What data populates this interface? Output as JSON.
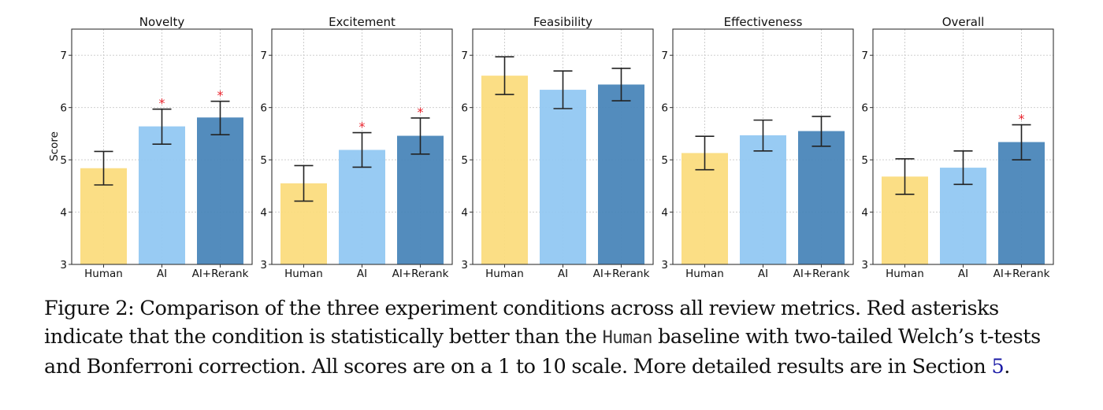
{
  "chart_data": [
    {
      "type": "bar",
      "title": "Novelty",
      "ylabel": "Score",
      "xlabel": "",
      "ylim": [
        3,
        7.5
      ],
      "yticks": [
        3,
        4,
        5,
        6,
        7
      ],
      "grid": true,
      "categories": [
        "Human",
        "AI",
        "AI+Rerank"
      ],
      "values": [
        4.84,
        5.64,
        5.81
      ],
      "error_low": [
        4.52,
        5.3,
        5.48
      ],
      "error_high": [
        5.16,
        5.97,
        6.12
      ],
      "significant": [
        false,
        true,
        true
      ]
    },
    {
      "type": "bar",
      "title": "Excitement",
      "ylabel": "",
      "xlabel": "",
      "ylim": [
        3,
        7.5
      ],
      "yticks": [
        3,
        4,
        5,
        6,
        7
      ],
      "grid": true,
      "categories": [
        "Human",
        "AI",
        "AI+Rerank"
      ],
      "values": [
        4.55,
        5.19,
        5.46
      ],
      "error_low": [
        4.21,
        4.86,
        5.11
      ],
      "error_high": [
        4.89,
        5.52,
        5.8
      ],
      "significant": [
        false,
        true,
        true
      ]
    },
    {
      "type": "bar",
      "title": "Feasibility",
      "ylabel": "",
      "xlabel": "",
      "ylim": [
        3,
        7.5
      ],
      "yticks": [
        3,
        4,
        5,
        6,
        7
      ],
      "grid": true,
      "categories": [
        "Human",
        "AI",
        "AI+Rerank"
      ],
      "values": [
        6.61,
        6.34,
        6.44
      ],
      "error_low": [
        6.25,
        5.98,
        6.13
      ],
      "error_high": [
        6.97,
        6.7,
        6.75
      ],
      "significant": [
        false,
        false,
        false
      ]
    },
    {
      "type": "bar",
      "title": "Effectiveness",
      "ylabel": "",
      "xlabel": "",
      "ylim": [
        3,
        7.5
      ],
      "yticks": [
        3,
        4,
        5,
        6,
        7
      ],
      "grid": true,
      "categories": [
        "Human",
        "AI",
        "AI+Rerank"
      ],
      "values": [
        5.13,
        5.47,
        5.55
      ],
      "error_low": [
        4.81,
        5.17,
        5.26
      ],
      "error_high": [
        5.45,
        5.76,
        5.83
      ],
      "significant": [
        false,
        false,
        false
      ]
    },
    {
      "type": "bar",
      "title": "Overall",
      "ylabel": "",
      "xlabel": "",
      "ylim": [
        3,
        7.5
      ],
      "yticks": [
        3,
        4,
        5,
        6,
        7
      ],
      "grid": true,
      "categories": [
        "Human",
        "AI",
        "AI+Rerank"
      ],
      "values": [
        4.68,
        4.85,
        5.34
      ],
      "error_low": [
        4.34,
        4.53,
        5.0
      ],
      "error_high": [
        5.02,
        5.17,
        5.67
      ],
      "significant": [
        false,
        false,
        true
      ]
    }
  ],
  "colors": {
    "Human": "#FBDC7E",
    "AI": "#92C8F2",
    "AI+Rerank": "#4A86B9",
    "significance_marker": "#E8202A",
    "error_bar": "#222222",
    "link": "#1a1aa6"
  },
  "significance_marker": "*",
  "caption": {
    "line1": "Figure 2: Comparison of the three experiment conditions across all review metrics. Red asterisks",
    "line2_a": "indicate that the condition is statistically better than the ",
    "line2_code": "Human",
    "line2_b": " baseline with two-tailed Welch’s t-tests",
    "line3_a": "and Bonferroni correction. All scores are on a 1 to 10 scale. More detailed results are in Section ",
    "line3_ref": "5",
    "line3_b": "."
  }
}
